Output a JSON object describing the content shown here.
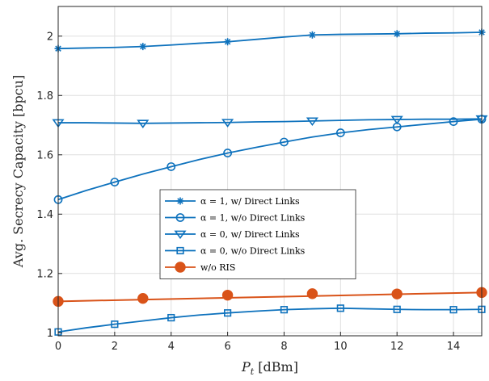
{
  "chart_data": {
    "type": "line",
    "title": "",
    "xlabel_main": "P",
    "xlabel_sub": "t",
    "xlabel_unit": " [dBm]",
    "ylabel": "Avg. Secrecy Capacity [bpcu]",
    "xlim": [
      0,
      15
    ],
    "ylim": [
      0.99,
      2.1
    ],
    "xticks": [
      0,
      2,
      4,
      6,
      8,
      10,
      12,
      14
    ],
    "yticks": [
      1,
      1.2,
      1.4,
      1.6,
      1.8,
      2
    ],
    "ytick_labels": [
      "1",
      "1.2",
      "1.4",
      "1.6",
      "1.8",
      "2"
    ],
    "grid": true,
    "legend_position": "center",
    "series": [
      {
        "name": "α = 1, w/ Direct Links",
        "color": "#0e72bd",
        "marker": "asterisk",
        "x": [
          0,
          3,
          6,
          9,
          12,
          15
        ],
        "y": [
          1.958,
          1.965,
          1.981,
          2.004,
          2.008,
          2.013
        ],
        "curve_x": [
          0,
          1,
          2,
          3,
          4,
          5,
          6,
          7,
          8,
          9,
          10,
          11,
          12,
          13,
          14,
          15
        ],
        "curve_y": [
          1.958,
          1.96,
          1.962,
          1.965,
          1.97,
          1.976,
          1.981,
          1.989,
          1.997,
          2.004,
          2.006,
          2.007,
          2.008,
          2.01,
          2.011,
          2.013
        ]
      },
      {
        "name": "α = 1, w/o Direct Links",
        "color": "#0e72bd",
        "marker": "circle",
        "x": [
          0,
          2,
          4,
          6,
          8,
          10,
          12,
          14,
          15
        ],
        "y": [
          1.449,
          1.508,
          1.56,
          1.606,
          1.643,
          1.674,
          1.694,
          1.712,
          1.72
        ],
        "curve_x": [
          0,
          1,
          2,
          3,
          4,
          5,
          6,
          7,
          8,
          9,
          10,
          11,
          12,
          13,
          14,
          15
        ],
        "curve_y": [
          1.449,
          1.48,
          1.508,
          1.535,
          1.56,
          1.584,
          1.606,
          1.625,
          1.643,
          1.66,
          1.674,
          1.685,
          1.694,
          1.703,
          1.712,
          1.72
        ]
      },
      {
        "name": "α = 0, w/ Direct Links",
        "color": "#0e72bd",
        "marker": "triangle-down",
        "x": [
          0,
          3,
          6,
          9,
          12,
          15
        ],
        "y": [
          1.708,
          1.706,
          1.709,
          1.714,
          1.719,
          1.721
        ],
        "curve_x": [
          0,
          1,
          2,
          3,
          4,
          5,
          6,
          7,
          8,
          9,
          10,
          11,
          12,
          13,
          14,
          15
        ],
        "curve_y": [
          1.708,
          1.708,
          1.707,
          1.706,
          1.707,
          1.708,
          1.709,
          1.711,
          1.712,
          1.714,
          1.716,
          1.718,
          1.719,
          1.72,
          1.72,
          1.721
        ]
      },
      {
        "name": "α = 0, w/o Direct Links",
        "color": "#0e72bd",
        "marker": "square",
        "x": [
          0,
          2,
          4,
          6,
          8,
          10,
          12,
          14,
          15
        ],
        "y": [
          1.003,
          1.029,
          1.051,
          1.067,
          1.078,
          1.083,
          1.079,
          1.078,
          1.079
        ],
        "curve_x": [
          0,
          1,
          2,
          3,
          4,
          5,
          6,
          7,
          8,
          9,
          10,
          11,
          12,
          13,
          14,
          15
        ],
        "curve_y": [
          1.003,
          1.017,
          1.029,
          1.04,
          1.051,
          1.06,
          1.067,
          1.073,
          1.078,
          1.081,
          1.083,
          1.081,
          1.079,
          1.078,
          1.078,
          1.079
        ]
      },
      {
        "name": "w/o RIS",
        "color": "#d95319",
        "marker": "filled-circle",
        "x": [
          0,
          3,
          6,
          9,
          12,
          15
        ],
        "y": [
          1.106,
          1.116,
          1.127,
          1.132,
          1.131,
          1.136
        ],
        "curve_x": [
          0,
          15
        ],
        "curve_y": [
          1.106,
          1.136
        ]
      }
    ]
  }
}
